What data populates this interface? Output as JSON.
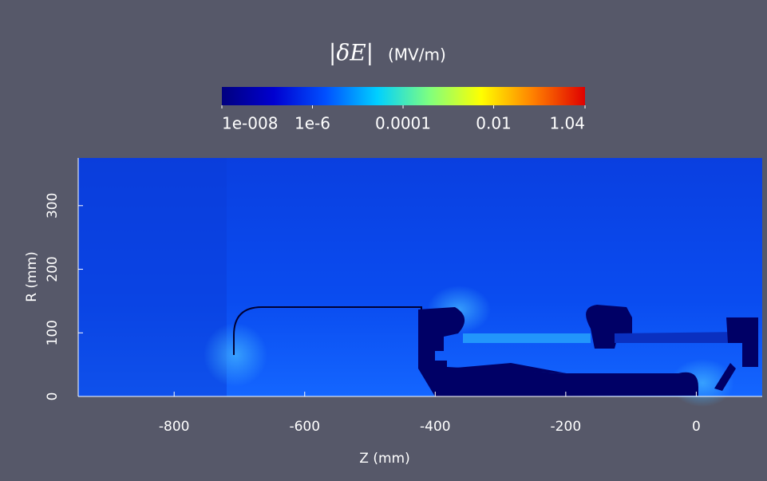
{
  "chart_data": {
    "type": "heatmap",
    "title_symbol": "|δE|",
    "title_unit": "(MV/m)",
    "xlabel": "Z (mm)",
    "ylabel": "R (mm)",
    "xlim": [
      -947,
      101
    ],
    "xticks": [
      -800,
      -600,
      -400,
      -200,
      0
    ],
    "ylim": [
      0,
      375
    ],
    "yticks": [
      0,
      100,
      200,
      300
    ],
    "colorbar_scale": "log",
    "colorbar_lim": [
      1e-08,
      1.04
    ],
    "colorbar_ticks": [
      {
        "value": 1e-08,
        "label": "1e-008"
      },
      {
        "value": 1e-06,
        "label": "1e-6"
      },
      {
        "value": 0.0001,
        "label": "0.0001"
      },
      {
        "value": 0.01,
        "label": "0.01"
      },
      {
        "value": 1.04,
        "label": "1.04"
      }
    ],
    "colormap": [
      "#00007f",
      "#0000d0",
      "#0050ff",
      "#00d0ff",
      "#7fff7f",
      "#ffff00",
      "#ff8000",
      "#e00000"
    ]
  }
}
